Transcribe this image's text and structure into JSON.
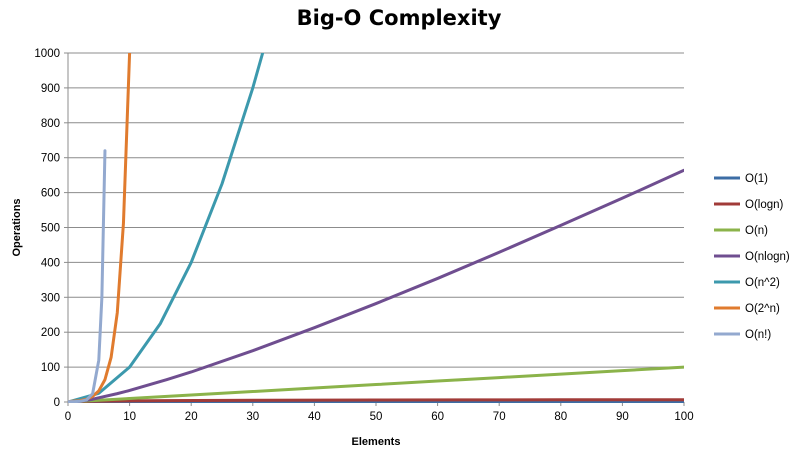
{
  "chart_data": {
    "type": "line",
    "title": "Big-O Complexity",
    "xlabel": "Elements",
    "ylabel": "Operations",
    "xlim": [
      0,
      100
    ],
    "ylim": [
      0,
      1000
    ],
    "x_ticks": [
      0,
      10,
      20,
      30,
      40,
      50,
      60,
      70,
      80,
      90,
      100
    ],
    "y_ticks": [
      0,
      100,
      200,
      300,
      400,
      500,
      600,
      700,
      800,
      900,
      1000
    ],
    "grid": "horizontal",
    "legend_position": "right",
    "series": [
      {
        "name": "O(1)",
        "color": "#3c6da5",
        "x": [
          0,
          10,
          20,
          30,
          40,
          50,
          60,
          70,
          80,
          90,
          100
        ],
        "values": [
          1,
          1,
          1,
          1,
          1,
          1,
          1,
          1,
          1,
          1,
          1
        ]
      },
      {
        "name": "O(logn)",
        "color": "#a13b38",
        "x": [
          1,
          2,
          4,
          8,
          16,
          32,
          50,
          64,
          80,
          100
        ],
        "values": [
          0,
          1,
          2,
          3,
          4,
          5,
          5.6,
          6,
          6.3,
          6.6
        ]
      },
      {
        "name": "O(n)",
        "color": "#8bb34a",
        "x": [
          0,
          10,
          20,
          30,
          40,
          50,
          60,
          70,
          80,
          90,
          100
        ],
        "values": [
          0,
          10,
          20,
          30,
          40,
          50,
          60,
          70,
          80,
          90,
          100
        ]
      },
      {
        "name": "O(nlogn)",
        "color": "#6f4e90",
        "x": [
          1,
          2,
          4,
          8,
          10,
          16,
          20,
          30,
          40,
          50,
          60,
          70,
          80,
          90,
          100
        ],
        "values": [
          0,
          2,
          8,
          24,
          33,
          64,
          86,
          147,
          213,
          282,
          354,
          429,
          506,
          584,
          664
        ]
      },
      {
        "name": "O(n^2)",
        "color": "#3c99ad",
        "x": [
          0,
          5,
          10,
          15,
          20,
          25,
          30,
          31.6
        ],
        "values": [
          0,
          25,
          100,
          225,
          400,
          625,
          900,
          1000
        ]
      },
      {
        "name": "O(2^n)",
        "color": "#e07b2e",
        "x": [
          0,
          2,
          3,
          4,
          5,
          6,
          7,
          8,
          9,
          10
        ],
        "values": [
          1,
          4,
          8,
          16,
          32,
          64,
          128,
          256,
          512,
          1000
        ]
      },
      {
        "name": "O(n!)",
        "color": "#93a9cf",
        "x": [
          0,
          1,
          2,
          3,
          4,
          5,
          5.5,
          6
        ],
        "values": [
          1,
          1,
          2,
          6,
          24,
          120,
          300,
          720
        ]
      }
    ]
  }
}
